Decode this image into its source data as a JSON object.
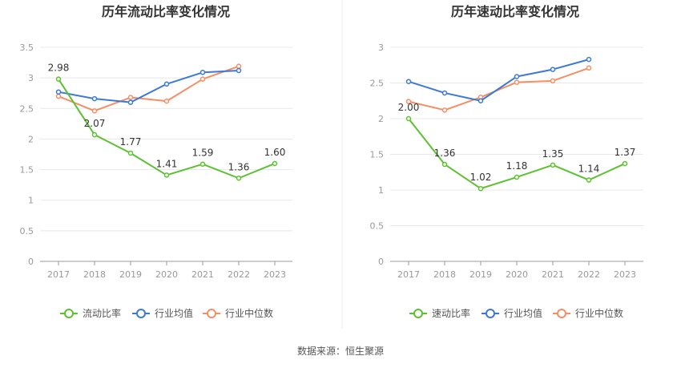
{
  "source_label": "数据来源：恒生聚源",
  "colors": {
    "main": "#5cc12f",
    "avg": "#3c78d8",
    "median": "#f58f63",
    "grid": "#e8e8e8",
    "axis": "#999999"
  },
  "chart_data": [
    {
      "type": "line",
      "title": "历年流动比率变化情况",
      "categories": [
        "2017",
        "2018",
        "2019",
        "2020",
        "2021",
        "2022",
        "2023"
      ],
      "ylim": [
        0,
        3.5
      ],
      "yticks": [
        "0",
        "0.5",
        "1",
        "1.5",
        "2",
        "2.5",
        "3",
        "3.5"
      ],
      "legend_position": "bottom",
      "series": [
        {
          "name": "流动比率",
          "color": "#5cc12f",
          "values": [
            2.98,
            2.07,
            1.77,
            1.41,
            1.59,
            1.36,
            1.6
          ],
          "labels": [
            "2.98",
            "2.07",
            "1.77",
            "1.41",
            "1.59",
            "1.36",
            "1.60"
          ]
        },
        {
          "name": "行业均值",
          "color": "#3c78d8",
          "values": [
            2.77,
            2.66,
            2.6,
            2.9,
            3.09,
            3.12,
            null
          ]
        },
        {
          "name": "行业中位数",
          "color": "#f58f63",
          "values": [
            2.7,
            2.46,
            2.68,
            2.62,
            2.98,
            3.19,
            null
          ]
        }
      ]
    },
    {
      "type": "line",
      "title": "历年速动比率变化情况",
      "categories": [
        "2017",
        "2018",
        "2019",
        "2020",
        "2021",
        "2022",
        "2023"
      ],
      "ylim": [
        0,
        3
      ],
      "yticks": [
        "0",
        "0.5",
        "1",
        "1.5",
        "2",
        "2.5",
        "3"
      ],
      "legend_position": "bottom",
      "series": [
        {
          "name": "速动比率",
          "color": "#5cc12f",
          "values": [
            2.0,
            1.36,
            1.02,
            1.18,
            1.35,
            1.14,
            1.37
          ],
          "labels": [
            "2.00",
            "1.36",
            "1.02",
            "1.18",
            "1.35",
            "1.14",
            "1.37"
          ]
        },
        {
          "name": "行业均值",
          "color": "#3c78d8",
          "values": [
            2.52,
            2.36,
            2.25,
            2.59,
            2.69,
            2.83,
            null
          ]
        },
        {
          "name": "行业中位数",
          "color": "#f58f63",
          "values": [
            2.24,
            2.12,
            2.3,
            2.51,
            2.53,
            2.71,
            null
          ]
        }
      ]
    }
  ]
}
